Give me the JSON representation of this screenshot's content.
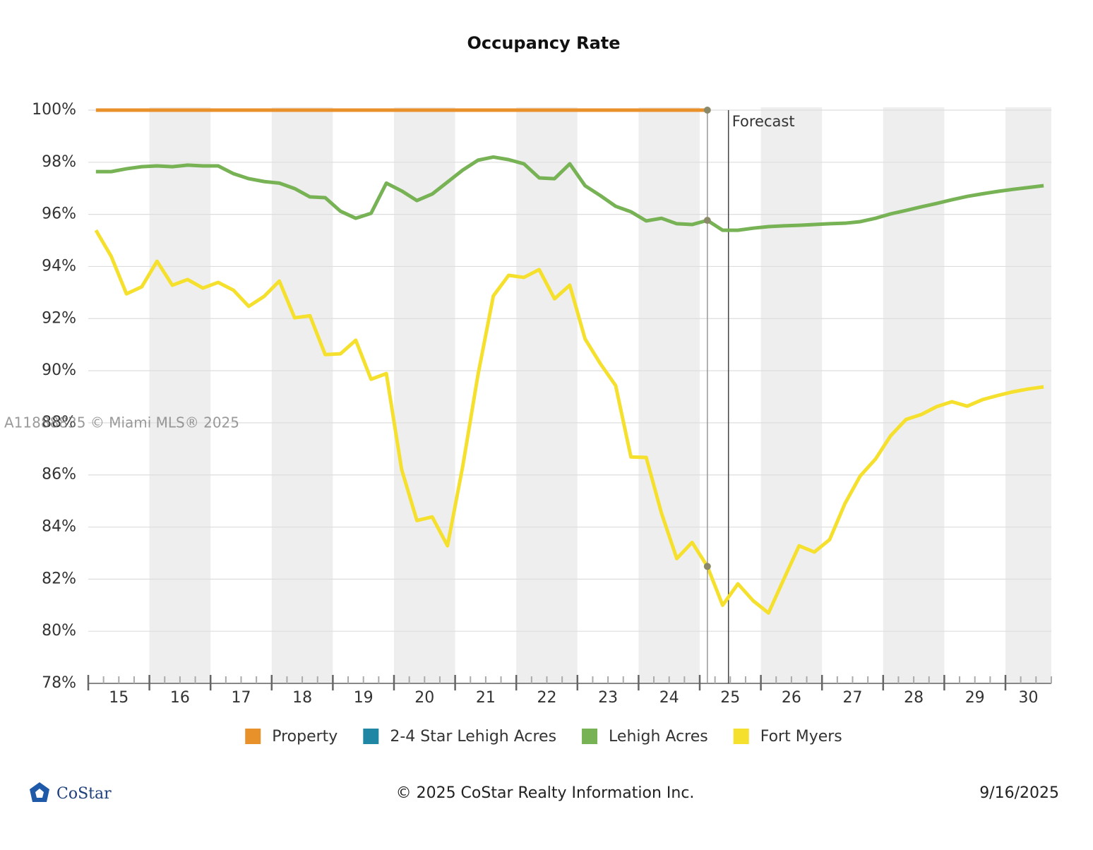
{
  "chart_data": {
    "type": "line",
    "title": "Occupancy Rate",
    "x": [
      15.125,
      15.375,
      15.625,
      15.875,
      16.125,
      16.375,
      16.625,
      16.875,
      17.125,
      17.375,
      17.625,
      17.875,
      18.125,
      18.375,
      18.625,
      18.875,
      19.125,
      19.375,
      19.625,
      19.875,
      20.125,
      20.375,
      20.625,
      20.875,
      21.125,
      21.375,
      21.625,
      21.875,
      22.125,
      22.375,
      22.625,
      22.875,
      23.125,
      23.375,
      23.625,
      23.875,
      24.125,
      24.375,
      24.625,
      24.875,
      25.125,
      25.375,
      25.625,
      25.875,
      26.125,
      26.375,
      26.625,
      26.875,
      27.125,
      27.375,
      27.625,
      27.875,
      28.125,
      28.375,
      28.625,
      28.875,
      29.125,
      29.375,
      29.625,
      29.875,
      30.125,
      30.375,
      30.625
    ],
    "series": [
      {
        "name": "Property",
        "color": "#e8912b",
        "values": [
          100,
          100,
          100,
          100,
          100,
          100,
          100,
          100,
          100,
          100,
          100,
          100,
          100,
          100,
          100,
          100,
          100,
          100,
          100,
          100,
          100,
          100,
          100,
          100,
          100,
          100,
          100,
          100,
          100,
          100,
          100,
          100,
          100,
          100,
          100,
          100,
          100,
          100,
          100,
          100,
          100,
          null,
          null,
          null,
          null,
          null,
          null,
          null,
          null,
          null,
          null,
          null,
          null,
          null,
          null,
          null,
          null,
          null,
          null,
          null,
          null,
          null,
          null
        ]
      },
      {
        "name": "2-4 Star Lehigh Acres",
        "color": "#1f87a3"
      },
      {
        "name": "Lehigh Acres",
        "color": "#77b255",
        "values": [
          97.64,
          97.64,
          97.75,
          97.83,
          97.86,
          97.83,
          97.89,
          97.86,
          97.86,
          97.56,
          97.37,
          97.26,
          97.2,
          96.99,
          96.67,
          96.64,
          96.12,
          95.85,
          96.04,
          97.2,
          96.9,
          96.53,
          96.78,
          97.24,
          97.7,
          98.08,
          98.2,
          98.1,
          97.94,
          97.4,
          97.37,
          97.94,
          97.1,
          96.72,
          96.31,
          96.1,
          95.75,
          95.85,
          95.64,
          95.61,
          95.77,
          95.39,
          95.39,
          95.47,
          95.53,
          95.56,
          95.58,
          95.61,
          95.64,
          95.66,
          95.72,
          95.85,
          96.02,
          96.15,
          96.29,
          96.42,
          96.56,
          96.69,
          96.79,
          96.88,
          96.96,
          97.03,
          97.1
        ]
      },
      {
        "name": "Fort Myers",
        "color": "#f5e02e",
        "values": [
          95.39,
          94.39,
          92.95,
          93.22,
          94.2,
          93.28,
          93.5,
          93.17,
          93.39,
          93.09,
          92.47,
          92.85,
          93.44,
          92.03,
          92.11,
          90.62,
          90.65,
          91.17,
          89.67,
          89.89,
          86.21,
          84.25,
          84.39,
          83.28,
          86.34,
          89.86,
          92.87,
          93.66,
          93.58,
          93.88,
          92.76,
          93.28,
          91.22,
          90.27,
          89.43,
          86.69,
          86.67,
          84.53,
          82.79,
          83.41,
          82.49,
          81.0,
          81.82,
          81.17,
          80.7,
          82.0,
          83.28,
          83.04,
          83.52,
          84.9,
          85.96,
          86.61,
          87.51,
          88.13,
          88.32,
          88.62,
          88.81,
          88.64,
          88.89,
          89.05,
          89.19,
          89.3,
          89.38
        ]
      }
    ],
    "xlim": [
      15,
      30.75
    ],
    "xticks": [
      {
        "value": 15,
        "label": "15"
      },
      {
        "value": 16,
        "label": "16"
      },
      {
        "value": 17,
        "label": "17"
      },
      {
        "value": 18,
        "label": "18"
      },
      {
        "value": 19,
        "label": "19"
      },
      {
        "value": 20,
        "label": "20"
      },
      {
        "value": 21,
        "label": "21"
      },
      {
        "value": 22,
        "label": "22"
      },
      {
        "value": 23,
        "label": "23"
      },
      {
        "value": 24,
        "label": "24"
      },
      {
        "value": 25,
        "label": "25"
      },
      {
        "value": 26,
        "label": "26"
      },
      {
        "value": 27,
        "label": "27"
      },
      {
        "value": 28,
        "label": "28"
      },
      {
        "value": 29,
        "label": "29"
      },
      {
        "value": 30,
        "label": "30"
      }
    ],
    "ylim": [
      78,
      100
    ],
    "yticks": [
      {
        "value": 78,
        "label": "78%"
      },
      {
        "value": 80,
        "label": "80%"
      },
      {
        "value": 82,
        "label": "82%"
      },
      {
        "value": 84,
        "label": "84%"
      },
      {
        "value": 86,
        "label": "86%"
      },
      {
        "value": 88,
        "label": "88%"
      },
      {
        "value": 90,
        "label": "90%"
      },
      {
        "value": 92,
        "label": "92%"
      },
      {
        "value": 94,
        "label": "94%"
      },
      {
        "value": 96,
        "label": "96%"
      },
      {
        "value": 98,
        "label": "98%"
      },
      {
        "value": 100,
        "label": "100%"
      }
    ],
    "grid": true,
    "forecast": {
      "label": "Forecast",
      "x": 25.47
    },
    "watermark": "A11888835 © Miami MLS® 2025",
    "footer": {
      "logo": "CoStar",
      "copyright": "© 2025 CoStar Realty Information Inc.",
      "date": "9/16/2025"
    }
  }
}
